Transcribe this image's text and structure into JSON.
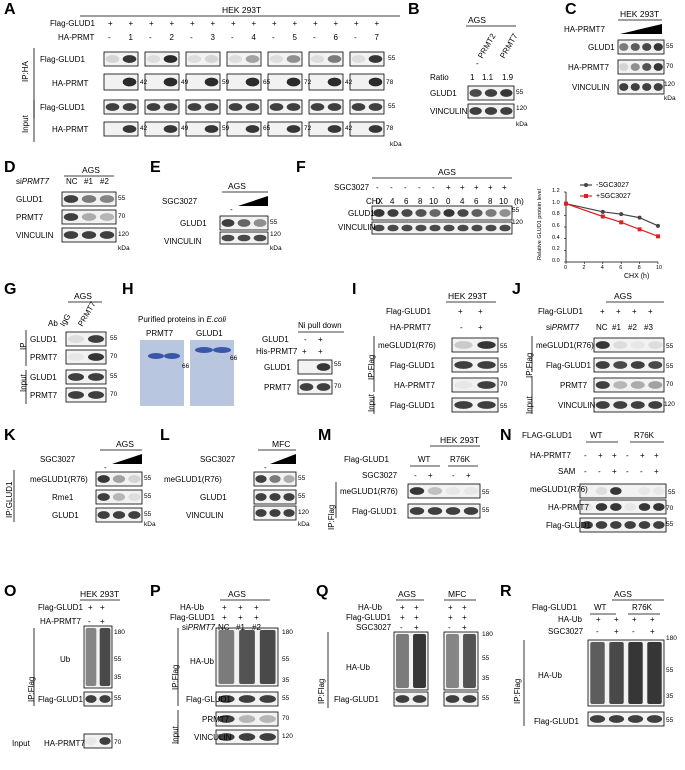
{
  "colors": {
    "band": "#2b2b2b",
    "blot_bg": "#f2f2f2",
    "coomassie_bg": "#b9c6e0",
    "coomassie_band": "#3a56a6",
    "ctrl_line": "#444444",
    "inh_line": "#e02020"
  },
  "A": {
    "panel": "A",
    "cell": "HEK 293T",
    "rows": [
      "Flag-GLUD1",
      "HA-PRMT"
    ],
    "ha_prmt_numbers": [
      "-",
      "1",
      "-",
      "2",
      "-",
      "3",
      "-",
      "4",
      "-",
      "5",
      "-",
      "6",
      "-",
      "7"
    ],
    "ip": "IP:HA",
    "input": "Input",
    "bands": [
      "Flag-GLUD1",
      "HA-PRMT",
      "Flag-GLUD1",
      "HA-PRMT"
    ],
    "mw_sets": [
      [
        "42",
        "49",
        "59",
        "65",
        "72",
        "42",
        "78"
      ]
    ],
    "mw_flag": "55",
    "kda": "kDa"
  },
  "B": {
    "panel": "B",
    "cell": "AGS",
    "lanes": [
      "-",
      "PRMT2",
      "PRMT7"
    ],
    "ratio_label": "Ratio",
    "ratio": [
      "1",
      "1.1",
      "1.9"
    ],
    "bands": [
      "GLUD1",
      "VINCULIN"
    ],
    "mw": [
      "55",
      "120"
    ],
    "kda": "kDa"
  },
  "C": {
    "panel": "C",
    "cell": "HEK 293T",
    "treat": "HA-PRMT7",
    "bands": [
      "GLUD1",
      "HA-PRMT7",
      "VINCULIN"
    ],
    "mw": [
      "55",
      "70",
      "120"
    ],
    "kda": "kDa"
  },
  "D": {
    "panel": "D",
    "cell": "AGS",
    "si": "si",
    "si_gene": "PRMT7",
    "lanes": [
      "NC",
      "#1",
      "#2"
    ],
    "bands": [
      "GLUD1",
      "PRMT7",
      "VINCULIN"
    ],
    "mw": [
      "55",
      "70",
      "120"
    ],
    "kda": "kDa"
  },
  "E": {
    "panel": "E",
    "cell": "AGS",
    "treat": "SGC3027",
    "lane": "-",
    "bands": [
      "GLUD1",
      "VINCULIN"
    ],
    "mw": [
      "55",
      "120"
    ],
    "kda": "kDa"
  },
  "F": {
    "panel": "F",
    "cell": "AGS",
    "sgc": "SGC3027",
    "sgc_signs": [
      "-",
      "-",
      "-",
      "-",
      "-",
      "+",
      "+",
      "+",
      "+",
      "+"
    ],
    "chx": "CHX",
    "chx_times": [
      "0",
      "4",
      "6",
      "8",
      "10",
      "0",
      "4",
      "6",
      "8",
      "10"
    ],
    "unit": "(h)",
    "bands": [
      "GLUD1",
      "VINCULIN"
    ],
    "mw": [
      "55",
      "120"
    ]
  },
  "chart_data": {
    "type": "line",
    "title": "",
    "xlabel": "CHX (h)",
    "ylabel": "Relative GLUD1 protein level",
    "x": [
      0,
      4,
      6,
      8,
      10
    ],
    "xticks": [
      "0",
      "2",
      "4",
      "6",
      "8",
      "10"
    ],
    "yticks": [
      "0.0",
      "0.2",
      "0.4",
      "0.6",
      "0.8",
      "1.0",
      "1.2"
    ],
    "xlim": [
      0,
      10
    ],
    "ylim": [
      0,
      1.2
    ],
    "series": [
      {
        "name": "-SGC3027",
        "values": [
          1.0,
          0.86,
          0.82,
          0.76,
          0.62
        ]
      },
      {
        "name": "+SGC3027",
        "values": [
          1.0,
          0.78,
          0.68,
          0.56,
          0.44
        ]
      }
    ],
    "legend": "top-right"
  },
  "G": {
    "panel": "G",
    "cell": "AGS",
    "ab": "Ab",
    "lanes": [
      "IgG",
      "PRMT7"
    ],
    "ip": "IP",
    "input": "Input",
    "bands": [
      "GLUD1",
      "PRMT7",
      "GLUD1",
      "PRMT7"
    ],
    "mw": [
      "55",
      "70",
      "55",
      "70"
    ]
  },
  "H": {
    "panel": "H",
    "title": "Purified proteins in",
    "title_it": "E.coli",
    "gels": [
      "PRMT7",
      "GLUD1"
    ],
    "mw1": "66",
    "mw2": "66",
    "pull": "Ni pull down",
    "rows": [
      "GLUD1",
      "His-PRMT7"
    ],
    "signs": [
      [
        "-",
        "+"
      ],
      [
        "+",
        "+"
      ]
    ],
    "bands": [
      "GLUD1",
      "PRMT7"
    ],
    "mw": [
      "55",
      "70"
    ]
  },
  "I": {
    "panel": "I",
    "cell": "HEK 293T",
    "rows": [
      "Flag-GLUD1",
      "HA-PRMT7"
    ],
    "signs": [
      [
        "+",
        "+"
      ],
      [
        "-",
        "+"
      ]
    ],
    "ip": "IP:Flag",
    "input": "Input",
    "bands": [
      "meGLUD1(R76)",
      "Flag-GLUD1",
      "HA-PRMT7",
      "Flag-GLUD1"
    ],
    "mw": [
      "55",
      "55",
      "70",
      "55"
    ]
  },
  "J": {
    "panel": "J",
    "cell": "AGS",
    "rows": [
      "Flag-GLUD1"
    ],
    "signs": [
      "+",
      "+",
      "+",
      "+"
    ],
    "si": "si",
    "si_gene": "PRMT7",
    "lanes": [
      "NC",
      "#1",
      "#2",
      "#3"
    ],
    "ip": "IP:Flag",
    "input": "Input",
    "bands": [
      "meGLUD1(R76)",
      "Flag-GLUD1",
      "PRMT7",
      "VINCULIN"
    ],
    "mw": [
      "55",
      "55",
      "70",
      "120"
    ]
  },
  "K": {
    "panel": "K",
    "cell": "AGS",
    "treat": "SGC3027",
    "lane": "-",
    "ip": "IP:GLUD1",
    "bands": [
      "meGLUD1(R76)",
      "Rme1",
      "GLUD1"
    ],
    "mw": [
      "55",
      "55",
      "55"
    ],
    "kda": "kDa"
  },
  "L": {
    "panel": "L",
    "cell": "MFC",
    "treat": "SGC3027",
    "lane": "-",
    "bands": [
      "meGLUD1(R76)",
      "GLUD1",
      "VINCULIN"
    ],
    "mw": [
      "55",
      "55",
      "120"
    ],
    "kda": "kDa"
  },
  "M": {
    "panel": "M",
    "cell": "HEK 293T",
    "row": "Flag-GLUD1",
    "groups": [
      "WT",
      "R76K"
    ],
    "treat": "SGC3027",
    "signs": [
      "-",
      "+",
      "-",
      "+"
    ],
    "ip": "IP:Flag",
    "bands": [
      "meGLUD1(R76)",
      "Flag-GLUD1"
    ],
    "mw": [
      "55",
      "55"
    ]
  },
  "N": {
    "panel": "N",
    "row": "FLAG-GLUD1",
    "groups": [
      "WT",
      "R76K"
    ],
    "rows": [
      "HA-PRMT7",
      "SAM"
    ],
    "signs": [
      [
        "-",
        "+",
        "+",
        "-",
        "+",
        "+"
      ],
      [
        "-",
        "-",
        "+",
        "-",
        "-",
        "+"
      ]
    ],
    "bands": [
      "meGLUD1(R76)",
      "HA-PRMT7",
      "Flag-GLUD1"
    ],
    "mw": [
      "55",
      "70",
      "55"
    ]
  },
  "O": {
    "panel": "O",
    "cell": "HEK 293T",
    "rows": [
      "Flag-GLUD1",
      "HA-PRMT7"
    ],
    "signs": [
      [
        "+",
        "+"
      ],
      [
        "-",
        "+"
      ]
    ],
    "ip": "IP:Flag",
    "band_ub": "Ub",
    "mw": [
      "180",
      "55",
      "35",
      "55",
      "70"
    ],
    "bands": [
      "Flag-GLUD1"
    ],
    "input": "Input",
    "input_band": "HA-PRMT7"
  },
  "P": {
    "panel": "P",
    "cell": "AGS",
    "rows": [
      "HA-Ub",
      "Flag-GLUD1"
    ],
    "si": "si",
    "si_gene": "PRMT7",
    "lanes": [
      "NC",
      "#1",
      "#2"
    ],
    "ip": "IP:Flag",
    "input": "Input",
    "band_ub": "HA-Ub",
    "bands": [
      "Flag-GLUD1",
      "PRMT7",
      "VINCULIN"
    ],
    "mw": [
      "180",
      "55",
      "35",
      "55",
      "70",
      "120"
    ]
  },
  "Q": {
    "panel": "Q",
    "cells": [
      "AGS",
      "MFC"
    ],
    "rows": [
      "HA-Ub",
      "Flag-GLUD1",
      "SGC3027"
    ],
    "signs": [
      [
        "+",
        "+"
      ],
      [
        "+",
        "+"
      ],
      [
        "-",
        "+"
      ]
    ],
    "ip": "IP:Flag",
    "band_ub": "HA-Ub",
    "bands": [
      "Flag-GLUD1"
    ],
    "mw": [
      "180",
      "55",
      "35",
      "55"
    ]
  },
  "R": {
    "panel": "R",
    "cell": "AGS",
    "row1": "Flag-GLUD1",
    "groups": [
      "WT",
      "R76K"
    ],
    "rows": [
      "HA-Ub",
      "SGC3027"
    ],
    "signs": [
      [
        "+",
        "+",
        "+",
        "+"
      ],
      [
        "-",
        "+",
        "-",
        "+"
      ]
    ],
    "ip": "IP:Flag",
    "band_ub": "HA-Ub",
    "bands": [
      "Flag-GLUD1"
    ],
    "mw": [
      "180",
      "55",
      "35",
      "55"
    ]
  }
}
